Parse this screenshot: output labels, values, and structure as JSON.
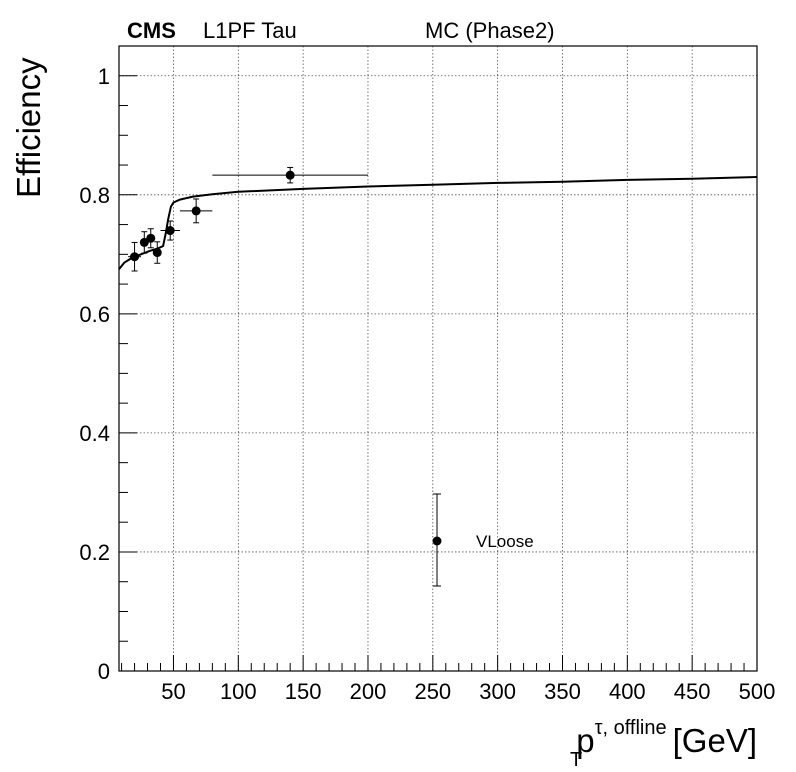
{
  "header": {
    "experiment": "CMS",
    "subtitle": "L1PF Tau",
    "sample": "MC (Phase2)"
  },
  "chart_data": {
    "type": "scatter",
    "title": "",
    "xlabel": {
      "base": "p",
      "subscript": "T",
      "superscript": "τ, offline",
      "unit": "[GeV]"
    },
    "ylabel": "Efficiency",
    "xlim": [
      8,
      500
    ],
    "ylim": [
      0,
      1.05
    ],
    "grid": true,
    "x_ticks": [
      50,
      100,
      150,
      200,
      250,
      300,
      350,
      400,
      450,
      500
    ],
    "x_tick_labels": [
      "50",
      "100",
      "150",
      "200",
      "250",
      "300",
      "350",
      "400",
      "450",
      "500"
    ],
    "y_ticks": [
      0,
      0.2,
      0.4,
      0.6,
      0.8,
      1
    ],
    "y_tick_labels": [
      "0",
      "0.2",
      "0.4",
      "0.6",
      "0.8",
      "1"
    ],
    "legend": {
      "position": "bottom-center",
      "entries": [
        "VLoose"
      ]
    },
    "series": [
      {
        "name": "VLoose",
        "points": [
          {
            "x": 20,
            "y": 0.696,
            "xerr": 5,
            "yerr": 0.024
          },
          {
            "x": 27.5,
            "y": 0.72,
            "xerr": 2.5,
            "yerr": 0.018
          },
          {
            "x": 32.5,
            "y": 0.727,
            "xerr": 2.5,
            "yerr": 0.016
          },
          {
            "x": 37.5,
            "y": 0.703,
            "xerr": 2.5,
            "yerr": 0.018
          },
          {
            "x": 47.5,
            "y": 0.74,
            "xerr": 7.5,
            "yerr": 0.016
          },
          {
            "x": 67.5,
            "y": 0.773,
            "xerr": 12.5,
            "yerr": 0.02
          },
          {
            "x": 140,
            "y": 0.833,
            "xerr": 60,
            "yerr": 0.013
          }
        ]
      }
    ],
    "fit_curve": [
      [
        8,
        0.675
      ],
      [
        12,
        0.686
      ],
      [
        18,
        0.694
      ],
      [
        25,
        0.7
      ],
      [
        32,
        0.706
      ],
      [
        38,
        0.71
      ],
      [
        42,
        0.714
      ],
      [
        44,
        0.735
      ],
      [
        46,
        0.76
      ],
      [
        48,
        0.78
      ],
      [
        50,
        0.787
      ],
      [
        55,
        0.792
      ],
      [
        65,
        0.797
      ],
      [
        80,
        0.801
      ],
      [
        100,
        0.805
      ],
      [
        150,
        0.81
      ],
      [
        200,
        0.814
      ],
      [
        250,
        0.817
      ],
      [
        300,
        0.82
      ],
      [
        350,
        0.822
      ],
      [
        400,
        0.825
      ],
      [
        450,
        0.827
      ],
      [
        500,
        0.83
      ]
    ]
  }
}
